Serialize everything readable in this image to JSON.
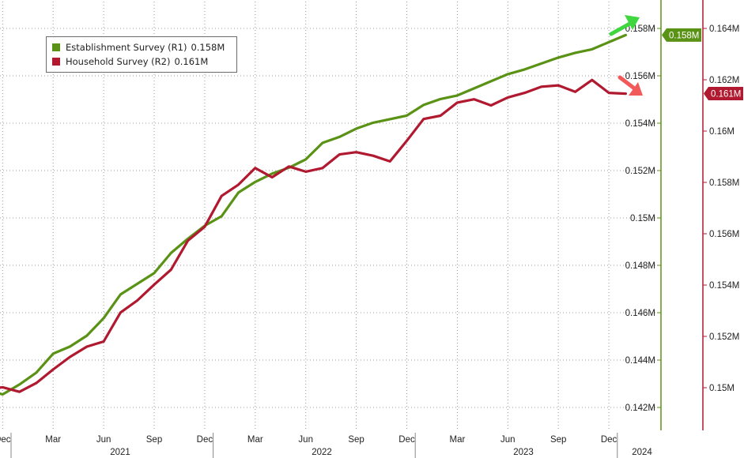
{
  "colors": {
    "establishment": "#5a9216",
    "household": "#b0192f",
    "arrow_up": "#3fd63f",
    "arrow_down": "#f25a5a",
    "grid": "#9a9a9a"
  },
  "legend": {
    "items": [
      {
        "label": "Establishment Survey (R1)",
        "value": "0.158M"
      },
      {
        "label": "Household Survey (R2)",
        "value": "0.161M"
      }
    ]
  },
  "chart_data": {
    "type": "line",
    "grid": true,
    "legend_position": "top-left",
    "x": [
      "Nov 2020",
      "Dec 2020",
      "Jan 2021",
      "Feb 2021",
      "Mar 2021",
      "Apr 2021",
      "May 2021",
      "Jun 2021",
      "Jul 2021",
      "Aug 2021",
      "Sep 2021",
      "Oct 2021",
      "Nov 2021",
      "Dec 2021",
      "Jan 2022",
      "Feb 2022",
      "Mar 2022",
      "Apr 2022",
      "May 2022",
      "Jun 2022",
      "Jul 2022",
      "Aug 2022",
      "Sep 2022",
      "Oct 2022",
      "Nov 2022",
      "Dec 2022",
      "Jan 2023",
      "Feb 2023",
      "Mar 2023",
      "Apr 2023",
      "May 2023",
      "Jun 2023",
      "Jul 2023",
      "Aug 2023",
      "Sep 2023",
      "Oct 2023",
      "Nov 2023",
      "Dec 2023",
      "Jan 2024"
    ],
    "x_ticks": [
      "Dec",
      "Mar",
      "Jun",
      "Sep",
      "Dec",
      "Mar",
      "Jun",
      "Sep",
      "Dec",
      "Mar",
      "Jun",
      "Sep",
      "Dec"
    ],
    "year_labels": [
      "2021",
      "2022",
      "2023",
      "2024"
    ],
    "series": [
      {
        "name": "Establishment Survey (R1)",
        "axis": "y1",
        "color": "#5a9216",
        "last_value_label": "0.158M",
        "values": [
          0.14277,
          0.14255,
          0.14297,
          0.14347,
          0.14427,
          0.14457,
          0.14503,
          0.14577,
          0.14677,
          0.14722,
          0.14767,
          0.14852,
          0.14912,
          0.14967,
          0.15007,
          0.15107,
          0.15152,
          0.15187,
          0.15212,
          0.15247,
          0.15317,
          0.15342,
          0.15377,
          0.15402,
          0.15417,
          0.15432,
          0.15477,
          0.15502,
          0.15517,
          0.15547,
          0.15577,
          0.15607,
          0.15627,
          0.15652,
          0.15677,
          0.15697,
          0.15712,
          0.15742,
          0.15772
        ]
      },
      {
        "name": "Household Survey (R2)",
        "axis": "y2",
        "color": "#b0192f",
        "last_value_label": "0.161M",
        "values": [
          0.14993,
          0.15002,
          0.14984,
          0.15018,
          0.15071,
          0.1512,
          0.1516,
          0.1518,
          0.15293,
          0.1534,
          0.15402,
          0.1546,
          0.15573,
          0.15627,
          0.15747,
          0.15791,
          0.15856,
          0.1582,
          0.15862,
          0.15842,
          0.15856,
          0.15909,
          0.15918,
          0.15904,
          0.15882,
          0.15962,
          0.16047,
          0.1606,
          0.16111,
          0.16124,
          0.161,
          0.16131,
          0.16149,
          0.16173,
          0.16178,
          0.16153,
          0.16199,
          0.16149,
          0.16146
        ]
      }
    ],
    "y1": {
      "ticks": [
        "0.142M",
        "0.144M",
        "0.146M",
        "0.148M",
        "0.15M",
        "0.152M",
        "0.154M",
        "0.156M",
        "0.158M"
      ],
      "range": [
        0.1415,
        0.1583
      ]
    },
    "y2": {
      "ticks": [
        "0.15M",
        "0.152M",
        "0.154M",
        "0.156M",
        "0.158M",
        "0.16M",
        "0.162M",
        "0.164M"
      ],
      "range": [
        0.1488,
        0.1646
      ]
    }
  }
}
